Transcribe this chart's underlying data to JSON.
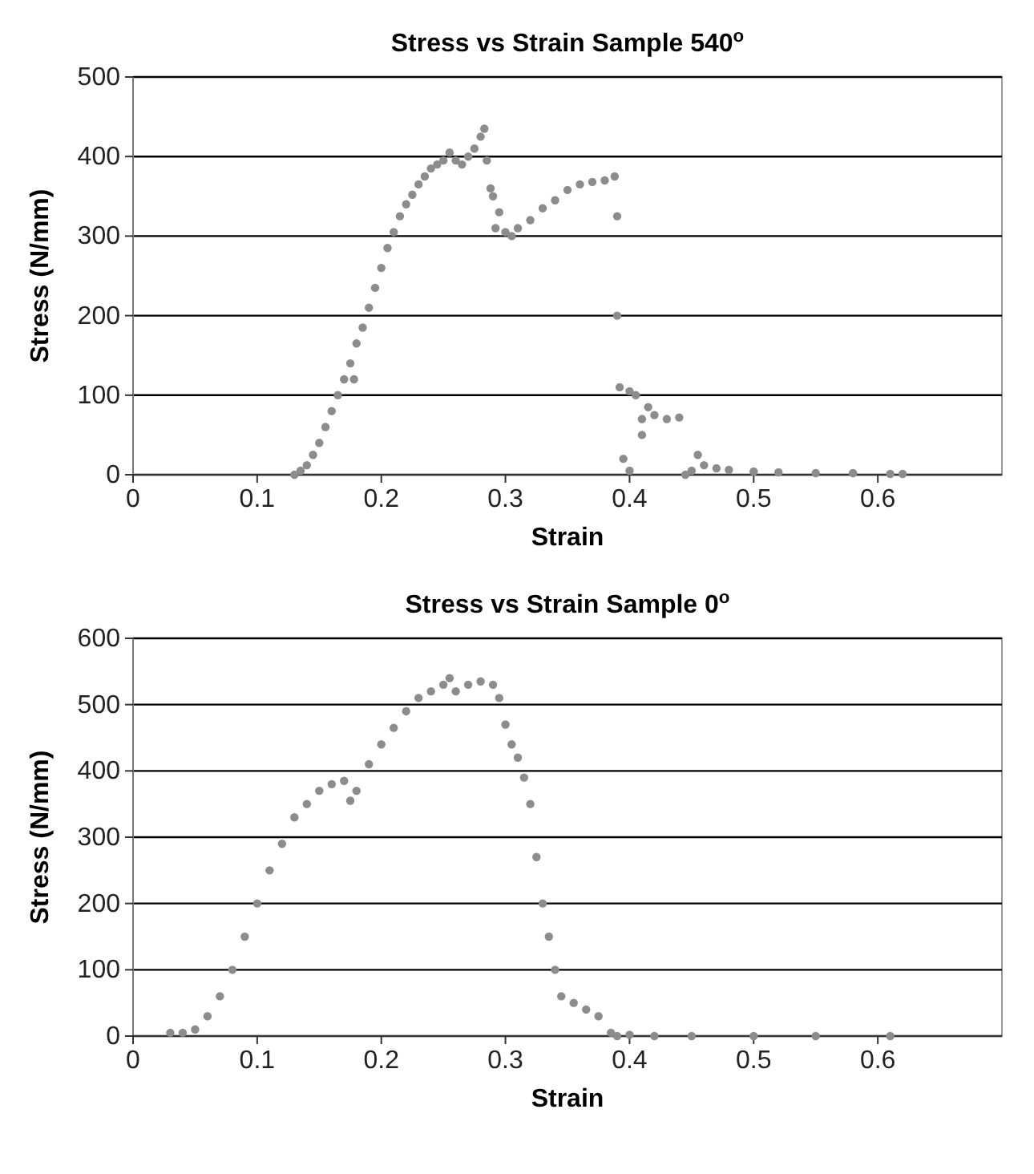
{
  "chart_data": [
    {
      "type": "scatter",
      "title": "Stress vs Strain Sample 540$^{o}$",
      "xlabel": "Strain",
      "ylabel": "Stress (N/mm)",
      "xlim": [
        0,
        0.7
      ],
      "xticks": [
        0,
        0.1,
        0.2,
        0.3,
        0.4,
        0.5,
        0.6
      ],
      "ylim": [
        0,
        500
      ],
      "yticks": [
        0,
        100,
        200,
        300,
        400,
        500
      ],
      "grid": "y",
      "marker": "circle",
      "series": [
        {
          "color": "#8c8c8c",
          "x": [
            0.13,
            0.135,
            0.14,
            0.145,
            0.15,
            0.155,
            0.16,
            0.165,
            0.17,
            0.175,
            0.178,
            0.18,
            0.185,
            0.19,
            0.195,
            0.2,
            0.205,
            0.21,
            0.215,
            0.22,
            0.225,
            0.23,
            0.235,
            0.24,
            0.245,
            0.25,
            0.255,
            0.26,
            0.265,
            0.27,
            0.275,
            0.28,
            0.283,
            0.285,
            0.288,
            0.29,
            0.292,
            0.295,
            0.3,
            0.305,
            0.31,
            0.32,
            0.33,
            0.34,
            0.35,
            0.36,
            0.37,
            0.38,
            0.388,
            0.39,
            0.39,
            0.392,
            0.395,
            0.4,
            0.4,
            0.405,
            0.41,
            0.41,
            0.415,
            0.42,
            0.43,
            0.44,
            0.445,
            0.45,
            0.455,
            0.46,
            0.47,
            0.48,
            0.5,
            0.52,
            0.55,
            0.58,
            0.61,
            0.62
          ],
          "values": [
            0,
            5,
            12,
            25,
            40,
            60,
            80,
            100,
            120,
            140,
            120,
            165,
            185,
            210,
            235,
            260,
            285,
            305,
            325,
            340,
            352,
            365,
            375,
            385,
            390,
            395,
            405,
            395,
            390,
            400,
            410,
            425,
            435,
            395,
            360,
            350,
            310,
            330,
            305,
            300,
            310,
            320,
            335,
            345,
            358,
            365,
            368,
            370,
            375,
            325,
            200,
            110,
            20,
            5,
            105,
            100,
            70,
            50,
            85,
            75,
            70,
            72,
            0,
            5,
            25,
            12,
            8,
            6,
            4,
            3,
            2,
            2,
            1,
            1
          ]
        }
      ]
    },
    {
      "type": "scatter",
      "title": "Stress vs Strain Sample 0$^{o}$",
      "xlabel": "Strain",
      "ylabel": "Stress (N/mm)",
      "xlim": [
        0,
        0.7
      ],
      "xticks": [
        0,
        0.1,
        0.2,
        0.3,
        0.4,
        0.5,
        0.6
      ],
      "ylim": [
        0,
        600
      ],
      "yticks": [
        0,
        100,
        200,
        300,
        400,
        500,
        600
      ],
      "grid": "y",
      "marker": "circle",
      "series": [
        {
          "color": "#8c8c8c",
          "x": [
            0.03,
            0.04,
            0.05,
            0.06,
            0.07,
            0.08,
            0.09,
            0.1,
            0.11,
            0.12,
            0.13,
            0.14,
            0.15,
            0.16,
            0.17,
            0.175,
            0.18,
            0.19,
            0.2,
            0.21,
            0.22,
            0.23,
            0.24,
            0.25,
            0.255,
            0.26,
            0.27,
            0.28,
            0.29,
            0.295,
            0.3,
            0.305,
            0.31,
            0.315,
            0.32,
            0.325,
            0.33,
            0.335,
            0.34,
            0.345,
            0.355,
            0.365,
            0.375,
            0.385,
            0.39,
            0.4,
            0.42,
            0.45,
            0.5,
            0.55,
            0.61
          ],
          "values": [
            5,
            5,
            10,
            30,
            60,
            100,
            150,
            200,
            250,
            290,
            330,
            350,
            370,
            380,
            385,
            355,
            370,
            410,
            440,
            465,
            490,
            510,
            520,
            530,
            540,
            520,
            530,
            535,
            530,
            510,
            470,
            440,
            420,
            390,
            350,
            270,
            200,
            150,
            100,
            60,
            50,
            40,
            30,
            5,
            0,
            2,
            0,
            0,
            0,
            0,
            0
          ]
        }
      ]
    }
  ]
}
